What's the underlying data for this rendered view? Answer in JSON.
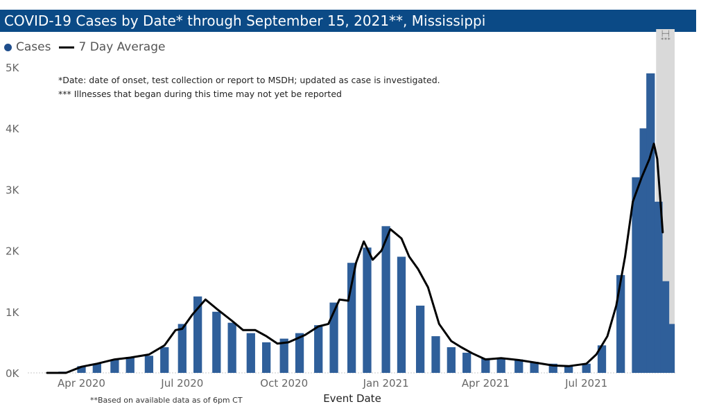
{
  "title": "COVID-19 Cases by Date* through September 15, 2021**, Mississippi",
  "legend": {
    "cases_label": "Cases",
    "avg_label": "7 Day Average"
  },
  "notes": {
    "line1": "*Date: date of onset, test collection or report to MSDH; updated as case is investigated.",
    "line2": "*** Illnesses that began during this time may not yet be reported"
  },
  "footnote": "**Based on available data as of 6pm CT",
  "recent_marker": {
    "icon": "span-bracket-icon",
    "label": "***"
  },
  "colors": {
    "bar": "#2f5f9a",
    "avg_line": "#000000",
    "title_bg": "#0b4a86",
    "shade": "#d9d9d9"
  },
  "chart_data": {
    "type": "bar",
    "xlabel": "Event Date",
    "ylabel": "",
    "ylim": [
      0,
      5000
    ],
    "y_ticks": [
      {
        "value": 0,
        "label": "0K"
      },
      {
        "value": 1000,
        "label": "1K"
      },
      {
        "value": 2000,
        "label": "2K"
      },
      {
        "value": 3000,
        "label": "3K"
      },
      {
        "value": 4000,
        "label": "4K"
      },
      {
        "value": 5000,
        "label": "5K"
      }
    ],
    "x_ticks": [
      {
        "date": "2020-04-01",
        "label": "Apr 2020"
      },
      {
        "date": "2020-07-01",
        "label": "Jul 2020"
      },
      {
        "date": "2020-10-01",
        "label": "Oct 2020"
      },
      {
        "date": "2021-01-01",
        "label": "Jan 2021"
      },
      {
        "date": "2021-04-01",
        "label": "Apr 2021"
      },
      {
        "date": "2021-07-01",
        "label": "Jul 2021"
      }
    ],
    "xlim": [
      "2020-02-25",
      "2021-09-20"
    ],
    "shaded_region": {
      "from": "2021-09-02",
      "to": "2021-09-15"
    },
    "grid": false,
    "legend_position": "top-left",
    "series": [
      {
        "name": "Cases",
        "type": "bar",
        "points": [
          [
            "2020-03-01",
            0
          ],
          [
            "2020-03-15",
            20
          ],
          [
            "2020-04-01",
            110
          ],
          [
            "2020-04-15",
            150
          ],
          [
            "2020-05-01",
            220
          ],
          [
            "2020-05-15",
            260
          ],
          [
            "2020-06-01",
            280
          ],
          [
            "2020-06-15",
            420
          ],
          [
            "2020-07-01",
            800
          ],
          [
            "2020-07-15",
            1250
          ],
          [
            "2020-08-01",
            1000
          ],
          [
            "2020-08-15",
            820
          ],
          [
            "2020-09-01",
            650
          ],
          [
            "2020-09-15",
            500
          ],
          [
            "2020-10-01",
            560
          ],
          [
            "2020-10-15",
            650
          ],
          [
            "2020-11-01",
            780
          ],
          [
            "2020-11-15",
            1150
          ],
          [
            "2020-12-01",
            1800
          ],
          [
            "2020-12-15",
            2050
          ],
          [
            "2021-01-01",
            2400
          ],
          [
            "2021-01-15",
            1900
          ],
          [
            "2021-02-01",
            1100
          ],
          [
            "2021-02-15",
            600
          ],
          [
            "2021-03-01",
            420
          ],
          [
            "2021-03-15",
            330
          ],
          [
            "2021-04-01",
            240
          ],
          [
            "2021-04-15",
            240
          ],
          [
            "2021-05-01",
            220
          ],
          [
            "2021-05-15",
            180
          ],
          [
            "2021-06-01",
            150
          ],
          [
            "2021-06-15",
            110
          ],
          [
            "2021-07-01",
            150
          ],
          [
            "2021-07-15",
            450
          ],
          [
            "2021-08-01",
            1600
          ],
          [
            "2021-08-15",
            3200
          ],
          [
            "2021-08-22",
            4000
          ],
          [
            "2021-08-28",
            4900
          ],
          [
            "2021-09-04",
            2800
          ],
          [
            "2021-09-10",
            1500
          ],
          [
            "2021-09-15",
            800
          ]
        ]
      },
      {
        "name": "7 Day Average",
        "type": "line",
        "points": [
          [
            "2020-03-01",
            0
          ],
          [
            "2020-03-18",
            0
          ],
          [
            "2020-04-01",
            100
          ],
          [
            "2020-04-15",
            150
          ],
          [
            "2020-05-01",
            220
          ],
          [
            "2020-05-15",
            250
          ],
          [
            "2020-06-01",
            300
          ],
          [
            "2020-06-15",
            450
          ],
          [
            "2020-06-25",
            700
          ],
          [
            "2020-07-01",
            720
          ],
          [
            "2020-07-10",
            950
          ],
          [
            "2020-07-22",
            1200
          ],
          [
            "2020-08-01",
            1050
          ],
          [
            "2020-08-15",
            850
          ],
          [
            "2020-08-25",
            700
          ],
          [
            "2020-09-05",
            700
          ],
          [
            "2020-09-15",
            600
          ],
          [
            "2020-09-25",
            480
          ],
          [
            "2020-10-05",
            500
          ],
          [
            "2020-10-20",
            620
          ],
          [
            "2020-11-01",
            760
          ],
          [
            "2020-11-10",
            800
          ],
          [
            "2020-11-20",
            1200
          ],
          [
            "2020-11-28",
            1180
          ],
          [
            "2020-12-05",
            1800
          ],
          [
            "2020-12-12",
            2150
          ],
          [
            "2020-12-20",
            1850
          ],
          [
            "2020-12-28",
            2000
          ],
          [
            "2021-01-05",
            2350
          ],
          [
            "2021-01-15",
            2200
          ],
          [
            "2021-01-22",
            1900
          ],
          [
            "2021-01-30",
            1700
          ],
          [
            "2021-02-08",
            1400
          ],
          [
            "2021-02-18",
            800
          ],
          [
            "2021-03-01",
            520
          ],
          [
            "2021-03-10",
            420
          ],
          [
            "2021-03-20",
            320
          ],
          [
            "2021-04-01",
            220
          ],
          [
            "2021-04-15",
            240
          ],
          [
            "2021-05-01",
            210
          ],
          [
            "2021-05-15",
            170
          ],
          [
            "2021-06-01",
            120
          ],
          [
            "2021-06-15",
            110
          ],
          [
            "2021-07-01",
            150
          ],
          [
            "2021-07-10",
            300
          ],
          [
            "2021-07-20",
            600
          ],
          [
            "2021-07-28",
            1100
          ],
          [
            "2021-08-05",
            1900
          ],
          [
            "2021-08-12",
            2800
          ],
          [
            "2021-08-20",
            3200
          ],
          [
            "2021-08-27",
            3500
          ],
          [
            "2021-08-31",
            3750
          ],
          [
            "2021-09-03",
            3500
          ],
          [
            "2021-09-06",
            2800
          ],
          [
            "2021-09-08",
            2300
          ]
        ]
      }
    ]
  }
}
